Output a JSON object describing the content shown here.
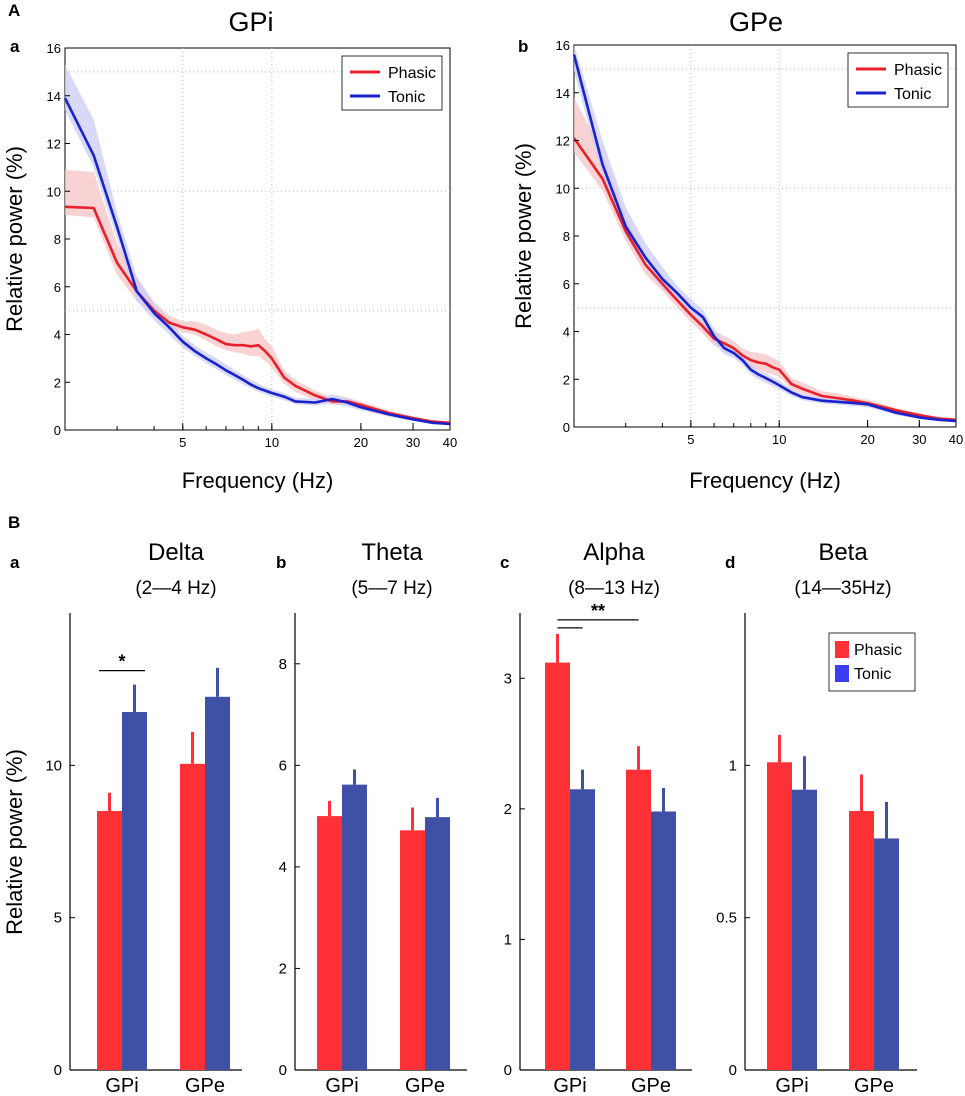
{
  "panels": {
    "A": "A",
    "B": "B"
  },
  "colors": {
    "phasic": "#e8202a",
    "tonic": "#1a22cc",
    "phasic_band": "#f7c3c6",
    "tonic_band": "#c9ccf4",
    "bar_phasic": "#ff3136",
    "bar_tonic": "#3f51a6",
    "legend_tonic": "#3d3df5"
  },
  "chart_data": [
    {
      "id": "A-a",
      "sublabel": "a",
      "type": "line",
      "title": "GPi",
      "xlabel": "Frequency (Hz)",
      "ylabel": "Relative power (%)",
      "xscale": "log",
      "xlim": [
        2,
        40
      ],
      "ylim": [
        0,
        16
      ],
      "xticks": [
        5,
        10,
        20,
        30,
        40
      ],
      "yticks": [
        0,
        2,
        4,
        6,
        8,
        10,
        12,
        14,
        16
      ],
      "legend": [
        "Phasic",
        "Tonic"
      ],
      "legend_position": "top-right",
      "series": [
        {
          "name": "Phasic",
          "x": [
            2,
            2.5,
            3,
            3.5,
            4,
            4.5,
            5,
            5.5,
            6,
            6.5,
            7,
            7.5,
            8,
            8.5,
            9,
            9.5,
            10,
            11,
            12,
            14,
            16,
            18,
            20,
            25,
            30,
            35,
            40
          ],
          "y": [
            9.35,
            9.3,
            7.0,
            5.8,
            5.0,
            4.5,
            4.3,
            4.2,
            4.0,
            3.8,
            3.6,
            3.55,
            3.55,
            3.5,
            3.55,
            3.3,
            3.0,
            2.2,
            1.85,
            1.45,
            1.2,
            1.2,
            1.05,
            0.7,
            0.5,
            0.35,
            0.3
          ],
          "upper": [
            10.9,
            10.8,
            7.8,
            6.4,
            5.35,
            4.8,
            4.55,
            4.55,
            4.4,
            4.2,
            4.05,
            4.0,
            4.1,
            4.15,
            4.25,
            3.8,
            3.5,
            2.5,
            2.1,
            1.65,
            1.35,
            1.35,
            1.2,
            0.8,
            0.58,
            0.4,
            0.35
          ],
          "lower": [
            9.0,
            8.9,
            6.5,
            5.4,
            4.75,
            4.3,
            4.1,
            4.0,
            3.75,
            3.5,
            3.35,
            3.25,
            3.2,
            3.1,
            3.1,
            2.9,
            2.6,
            1.95,
            1.6,
            1.25,
            1.05,
            1.05,
            0.9,
            0.6,
            0.42,
            0.3,
            0.25
          ]
        },
        {
          "name": "Tonic",
          "x": [
            2,
            2.5,
            3,
            3.5,
            4,
            4.5,
            5,
            5.5,
            6,
            6.5,
            7,
            7.5,
            8,
            8.5,
            9,
            9.5,
            10,
            11,
            12,
            14,
            16,
            18,
            20,
            25,
            30,
            35,
            40
          ],
          "y": [
            13.9,
            11.5,
            8.5,
            5.8,
            4.9,
            4.3,
            3.7,
            3.3,
            3.0,
            2.75,
            2.5,
            2.3,
            2.1,
            1.9,
            1.75,
            1.65,
            1.55,
            1.4,
            1.2,
            1.15,
            1.3,
            1.15,
            0.95,
            0.65,
            0.45,
            0.3,
            0.25
          ],
          "upper": [
            15.3,
            13.0,
            9.1,
            6.4,
            5.3,
            4.6,
            3.95,
            3.55,
            3.25,
            3.0,
            2.75,
            2.5,
            2.3,
            2.1,
            1.95,
            1.8,
            1.7,
            1.55,
            1.35,
            1.3,
            1.5,
            1.35,
            1.1,
            0.75,
            0.52,
            0.36,
            0.3
          ],
          "lower": [
            13.4,
            11.0,
            8.0,
            5.4,
            4.6,
            4.0,
            3.45,
            3.1,
            2.8,
            2.55,
            2.3,
            2.1,
            1.9,
            1.75,
            1.6,
            1.5,
            1.4,
            1.25,
            1.08,
            1.02,
            1.12,
            0.98,
            0.82,
            0.55,
            0.38,
            0.25,
            0.2
          ]
        }
      ]
    },
    {
      "id": "A-b",
      "sublabel": "b",
      "type": "line",
      "title": "GPe",
      "xlabel": "Frequency (Hz)",
      "ylabel": "Relative power (%)",
      "xscale": "log",
      "xlim": [
        2,
        40
      ],
      "ylim": [
        0,
        16
      ],
      "xticks": [
        5,
        10,
        20,
        30,
        40
      ],
      "yticks": [
        0,
        2,
        4,
        6,
        8,
        10,
        12,
        14,
        16
      ],
      "legend": [
        "Phasic",
        "Tonic"
      ],
      "legend_position": "top-right",
      "series": [
        {
          "name": "Phasic",
          "x": [
            2,
            2.5,
            3,
            3.5,
            4,
            4.5,
            5,
            5.5,
            6,
            6.5,
            7,
            7.5,
            8,
            8.5,
            9,
            9.5,
            10,
            11,
            12,
            14,
            16,
            18,
            20,
            25,
            30,
            35,
            40
          ],
          "y": [
            12.1,
            10.4,
            8.2,
            6.8,
            6.0,
            5.3,
            4.7,
            4.2,
            3.7,
            3.5,
            3.3,
            3.0,
            2.8,
            2.7,
            2.65,
            2.5,
            2.4,
            1.8,
            1.6,
            1.3,
            1.2,
            1.1,
            1.0,
            0.7,
            0.5,
            0.35,
            0.3
          ],
          "upper": [
            13.8,
            11.5,
            8.8,
            7.2,
            6.3,
            5.6,
            5.05,
            4.6,
            4.05,
            3.8,
            3.6,
            3.3,
            3.15,
            3.1,
            3.05,
            2.9,
            2.75,
            2.05,
            1.85,
            1.5,
            1.4,
            1.25,
            1.15,
            0.8,
            0.58,
            0.42,
            0.35
          ],
          "lower": [
            11.5,
            9.9,
            7.8,
            6.4,
            5.7,
            5.0,
            4.4,
            3.9,
            3.4,
            3.2,
            3.0,
            2.75,
            2.5,
            2.4,
            2.3,
            2.2,
            2.1,
            1.6,
            1.4,
            1.15,
            1.05,
            0.95,
            0.85,
            0.6,
            0.43,
            0.3,
            0.25
          ]
        },
        {
          "name": "Tonic",
          "x": [
            2,
            2.5,
            3,
            3.5,
            4,
            4.5,
            5,
            5.5,
            6,
            6.5,
            7,
            7.5,
            8,
            8.5,
            9,
            9.5,
            10,
            11,
            12,
            14,
            16,
            18,
            20,
            25,
            30,
            35,
            40
          ],
          "y": [
            15.6,
            11.0,
            8.4,
            7.1,
            6.2,
            5.6,
            5.0,
            4.6,
            3.8,
            3.3,
            3.1,
            2.8,
            2.4,
            2.2,
            2.05,
            1.9,
            1.75,
            1.45,
            1.25,
            1.1,
            1.05,
            1.0,
            0.95,
            0.6,
            0.4,
            0.3,
            0.25
          ],
          "upper": [
            16.0,
            12.0,
            9.2,
            7.7,
            6.7,
            5.9,
            5.35,
            4.9,
            4.1,
            3.55,
            3.3,
            3.0,
            2.6,
            2.4,
            2.25,
            2.1,
            1.95,
            1.6,
            1.38,
            1.22,
            1.17,
            1.12,
            1.07,
            0.7,
            0.47,
            0.35,
            0.3
          ],
          "lower": [
            14.9,
            10.5,
            8.0,
            6.7,
            5.8,
            5.3,
            4.75,
            4.35,
            3.55,
            3.05,
            2.9,
            2.6,
            2.2,
            2.0,
            1.85,
            1.7,
            1.58,
            1.3,
            1.12,
            0.98,
            0.93,
            0.88,
            0.83,
            0.5,
            0.33,
            0.25,
            0.2
          ]
        }
      ]
    },
    {
      "id": "B-a",
      "sublabel": "a",
      "type": "bar",
      "title": "Delta",
      "subtitle": "(2—4 Hz)",
      "ylabel": "Relative power (%)",
      "categories": [
        "GPi",
        "GPe"
      ],
      "ylim": [
        0,
        15
      ],
      "yticks": [
        0,
        5,
        10
      ],
      "ytick_labels": [
        "0",
        "5",
        "10"
      ],
      "series": [
        {
          "name": "Phasic",
          "values": [
            8.5,
            10.05
          ],
          "errors": [
            0.6,
            1.05
          ]
        },
        {
          "name": "Tonic",
          "values": [
            11.75,
            12.25
          ],
          "errors": [
            0.9,
            0.95
          ]
        }
      ],
      "significance": [
        {
          "label": "*",
          "between": "GPi Phasic vs GPi Tonic"
        }
      ]
    },
    {
      "id": "B-b",
      "sublabel": "b",
      "type": "bar",
      "title": "Theta",
      "subtitle": "(5—7 Hz)",
      "ylabel": "",
      "categories": [
        "GPi",
        "GPe"
      ],
      "ylim": [
        0,
        9
      ],
      "yticks": [
        0,
        2,
        4,
        6,
        8
      ],
      "ytick_labels": [
        "0",
        "2",
        "4",
        "6",
        "8"
      ],
      "series": [
        {
          "name": "Phasic",
          "values": [
            5.0,
            4.72
          ],
          "errors": [
            0.3,
            0.45
          ]
        },
        {
          "name": "Tonic",
          "values": [
            5.62,
            4.98
          ],
          "errors": [
            0.3,
            0.38
          ]
        }
      ]
    },
    {
      "id": "B-c",
      "sublabel": "c",
      "type": "bar",
      "title": "Alpha",
      "subtitle": "(8—13 Hz)",
      "ylabel": "",
      "categories": [
        "GPi",
        "GPe"
      ],
      "ylim": [
        0,
        3.5
      ],
      "yticks": [
        0,
        1,
        2,
        3
      ],
      "ytick_labels": [
        "0",
        "1",
        "2",
        "3"
      ],
      "series": [
        {
          "name": "Phasic",
          "values": [
            3.12,
            2.3
          ],
          "errors": [
            0.22,
            0.18
          ]
        },
        {
          "name": "Tonic",
          "values": [
            2.15,
            1.98
          ],
          "errors": [
            0.15,
            0.18
          ]
        }
      ],
      "significance": [
        {
          "label": "**",
          "between": "GPi Phasic vs GPi Tonic and GPe Phasic"
        }
      ]
    },
    {
      "id": "B-d",
      "sublabel": "d",
      "type": "bar",
      "title": "Beta",
      "subtitle": "(14—35Hz)",
      "ylabel": "",
      "categories": [
        "GPi",
        "GPe"
      ],
      "ylim": [
        0,
        1.5
      ],
      "yticks": [
        0,
        0.5,
        1
      ],
      "ytick_labels": [
        "0",
        "0.5",
        "1"
      ],
      "series": [
        {
          "name": "Phasic",
          "values": [
            1.01,
            0.85
          ],
          "errors": [
            0.09,
            0.12
          ]
        },
        {
          "name": "Tonic",
          "values": [
            0.92,
            0.76
          ],
          "errors": [
            0.11,
            0.12
          ]
        }
      ],
      "legend": [
        "Phasic",
        "Tonic"
      ],
      "legend_position": "top-right"
    }
  ]
}
